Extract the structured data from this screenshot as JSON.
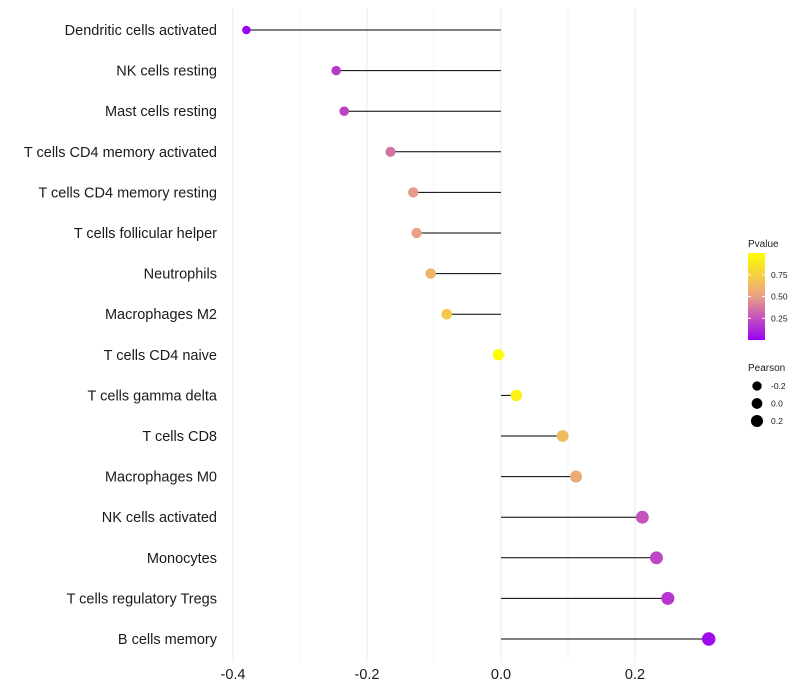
{
  "chart_data": {
    "type": "lollipop",
    "title": "",
    "xlabel": "",
    "ylabel": "",
    "xlim": [
      -0.4,
      0.32
    ],
    "xticks": [
      -0.4,
      -0.2,
      0.0,
      0.2
    ],
    "xtick_labels": [
      "-0.4",
      "-0.2",
      "0.0",
      "0.2"
    ],
    "grid": true,
    "legend_position": "right",
    "categories": [
      "Dendritic cells activated",
      "NK cells resting",
      "Mast cells resting",
      "T cells CD4 memory activated",
      "T cells CD4 memory resting",
      "T cells follicular helper",
      "Neutrophils",
      "Macrophages M2",
      "T cells CD4 naive",
      "T cells gamma delta",
      "T cells CD8",
      "Macrophages M0",
      "NK cells activated",
      "Monocytes",
      "T cells regulatory  Tregs",
      "B cells memory"
    ],
    "pearson": [
      -0.38,
      -0.246,
      -0.234,
      -0.165,
      -0.131,
      -0.126,
      -0.105,
      -0.081,
      -0.004,
      0.023,
      0.092,
      0.112,
      0.211,
      0.232,
      0.249,
      0.31
    ],
    "pvalue": [
      0.01,
      0.18,
      0.21,
      0.36,
      0.48,
      0.5,
      0.6,
      0.71,
      0.98,
      0.93,
      0.65,
      0.56,
      0.26,
      0.22,
      0.17,
      0.03
    ],
    "color_legend": {
      "title": "Pvalue",
      "ticks": [
        0.25,
        0.5,
        0.75
      ],
      "tick_labels": [
        "0.25",
        "0.50",
        "0.75"
      ],
      "range": [
        0.0,
        1.0
      ],
      "low_color": "#9b00f5",
      "mid_color": "#e9a085",
      "high_color": "#ffff00"
    },
    "size_legend": {
      "title": "Pearson",
      "values": [
        -0.2,
        0.0,
        0.2
      ],
      "labels": [
        "-0.2",
        "0.0",
        "0.2"
      ]
    }
  }
}
